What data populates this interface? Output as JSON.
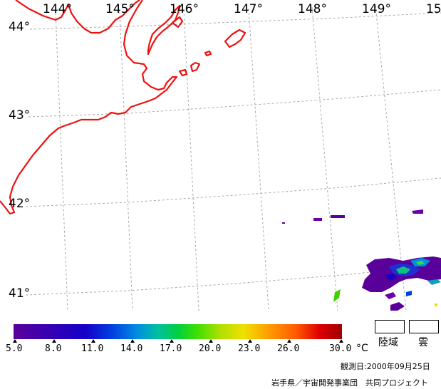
{
  "map": {
    "longitude_labels": [
      "144°",
      "145°",
      "146°",
      "147°",
      "148°",
      "149°",
      "15"
    ],
    "latitude_labels": [
      "44°",
      "43°",
      "42°",
      "41°"
    ],
    "coastline_color": "#ee1111",
    "grid_color": "#aaaaaa"
  },
  "colorbar": {
    "tick_labels": [
      "5.0",
      "8.0",
      "11.0",
      "14.0",
      "17.0",
      "20.0",
      "23.0",
      "26.0",
      "30.0"
    ],
    "unit": "°C",
    "color_stops": [
      "#5a009a",
      "#1400c8",
      "#0090e0",
      "#00d040",
      "#f0e000",
      "#ff9a00",
      "#e00000",
      "#a00000"
    ]
  },
  "legend": {
    "land_label": "陸域",
    "cloud_label": "雲"
  },
  "observation_date": "観測日:2000年09月25日",
  "credit": "岩手県／宇宙開発事業団　共同プロジェクト"
}
